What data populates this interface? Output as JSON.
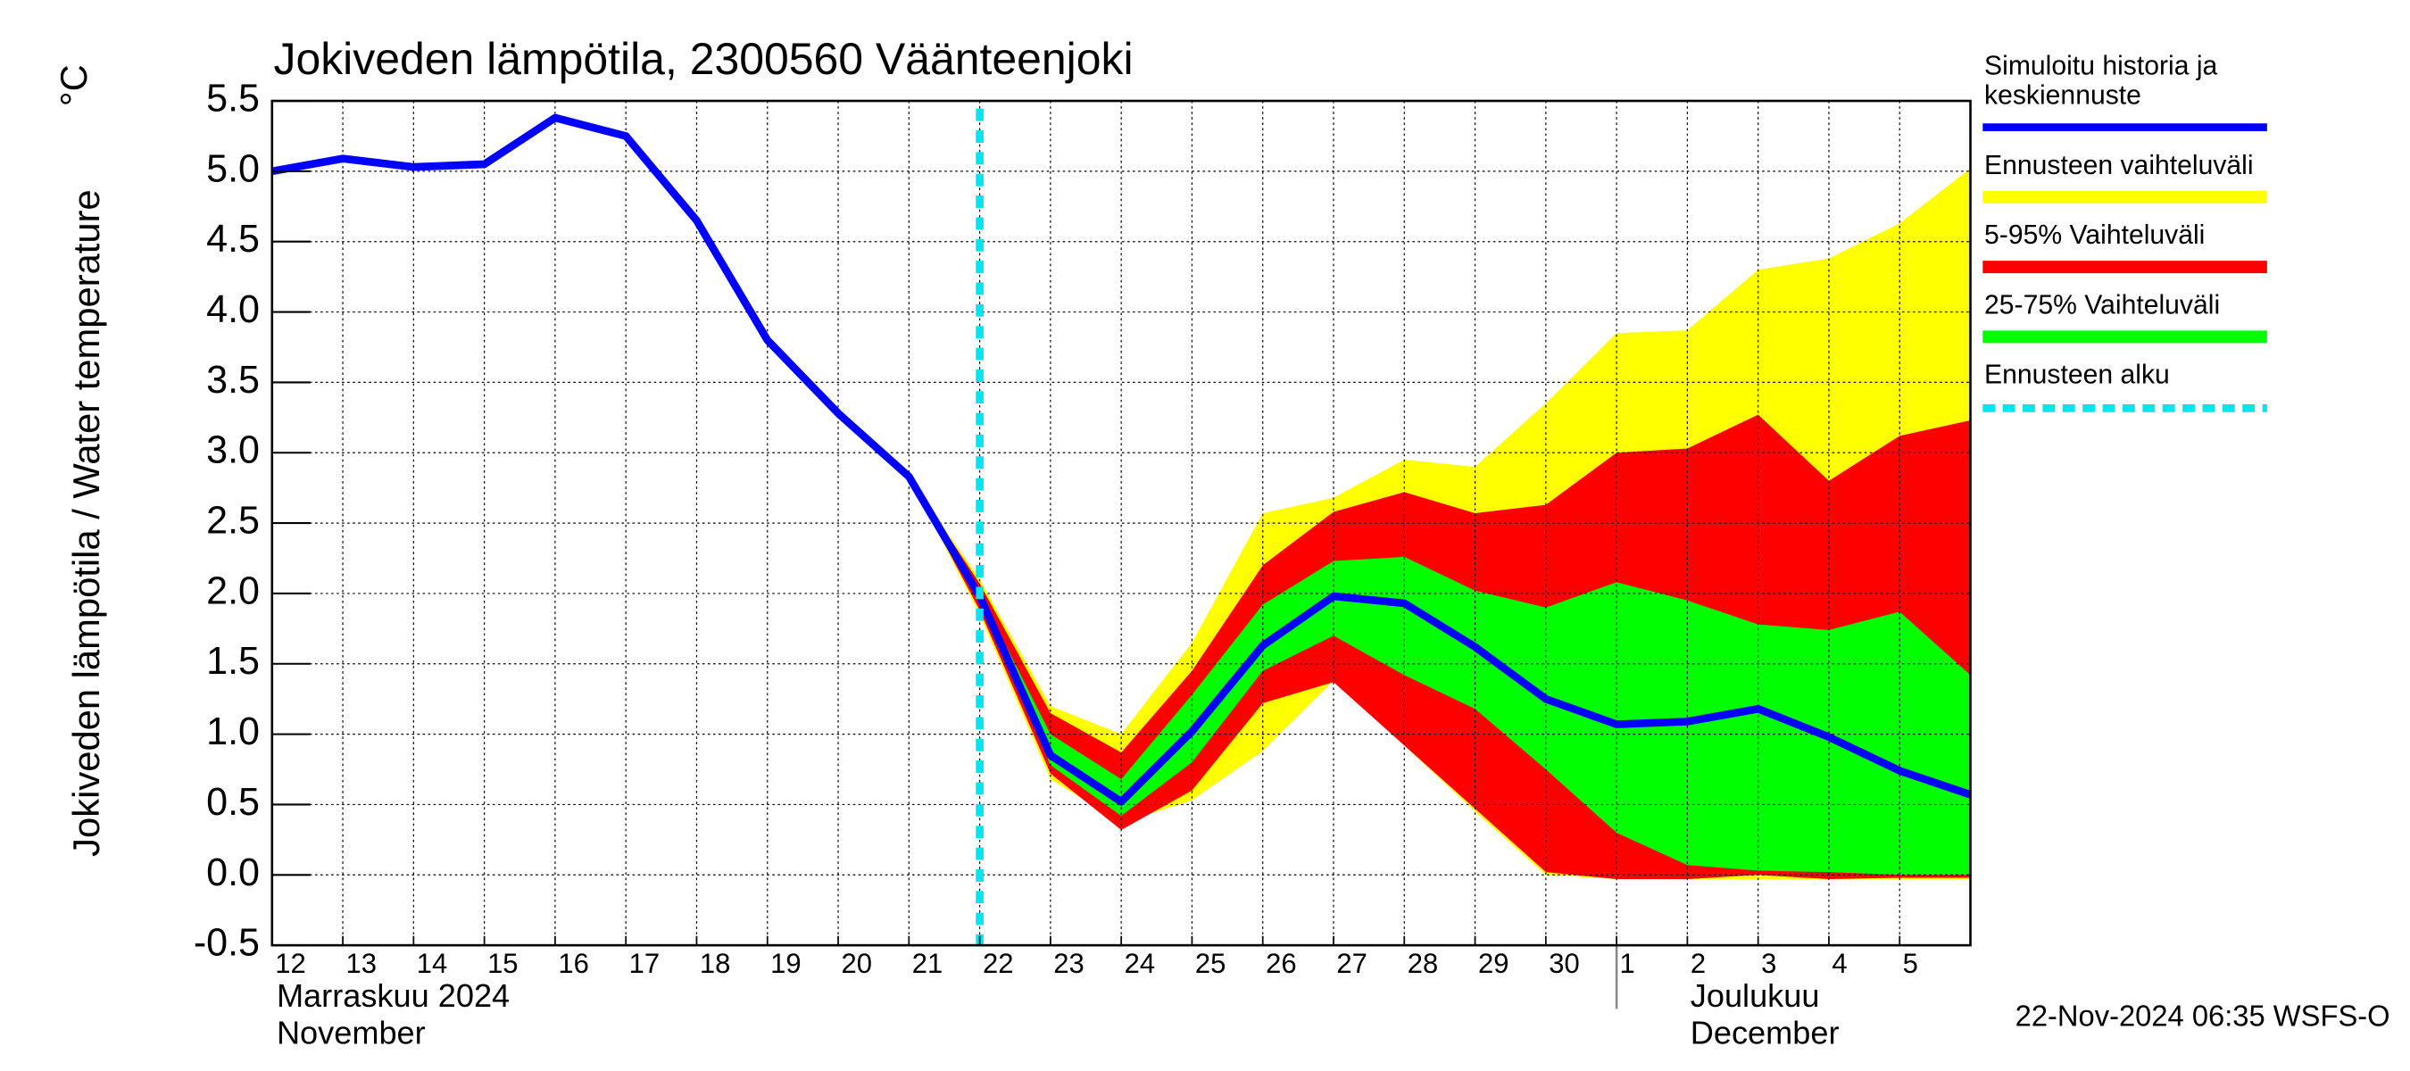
{
  "chart_data": {
    "type": "line",
    "title": "Jokiveden lämpötila, 2300560 Väänteenjoki",
    "ylabel": "Jokiveden lämpötila / Water temperature",
    "yunit": "°C",
    "month_labels": [
      {
        "x": "2024-11-12",
        "lines": [
          "Marraskuu 2024",
          "November"
        ]
      },
      {
        "x": "2024-12-01",
        "lines": [
          "Joulukuu",
          "December"
        ]
      }
    ],
    "footer": "22-Nov-2024 06:35 WSFS-O",
    "xlim": [
      "2024-11-12",
      "2024-12-06"
    ],
    "xticks": [
      {
        "value": "2024-11-12",
        "label": "12"
      },
      {
        "value": "2024-11-13",
        "label": "13"
      },
      {
        "value": "2024-11-14",
        "label": "14"
      },
      {
        "value": "2024-11-15",
        "label": "15"
      },
      {
        "value": "2024-11-16",
        "label": "16"
      },
      {
        "value": "2024-11-17",
        "label": "17"
      },
      {
        "value": "2024-11-18",
        "label": "18"
      },
      {
        "value": "2024-11-19",
        "label": "19"
      },
      {
        "value": "2024-11-20",
        "label": "20"
      },
      {
        "value": "2024-11-21",
        "label": "21"
      },
      {
        "value": "2024-11-22",
        "label": "22"
      },
      {
        "value": "2024-11-23",
        "label": "23"
      },
      {
        "value": "2024-11-24",
        "label": "24"
      },
      {
        "value": "2024-11-25",
        "label": "25"
      },
      {
        "value": "2024-11-26",
        "label": "26"
      },
      {
        "value": "2024-11-27",
        "label": "27"
      },
      {
        "value": "2024-11-28",
        "label": "28"
      },
      {
        "value": "2024-11-29",
        "label": "29"
      },
      {
        "value": "2024-11-30",
        "label": "30"
      },
      {
        "value": "2024-12-01",
        "label": "1"
      },
      {
        "value": "2024-12-02",
        "label": "2"
      },
      {
        "value": "2024-12-03",
        "label": "3"
      },
      {
        "value": "2024-12-04",
        "label": "4"
      },
      {
        "value": "2024-12-05",
        "label": "5"
      }
    ],
    "ylim": [
      -0.5,
      5.5
    ],
    "yticks": [
      -0.5,
      {
        "value": 0,
        "label": "0.0"
      },
      0.5,
      {
        "value": 1,
        "label": "1.0"
      },
      1.5,
      {
        "value": 2,
        "label": "2.0"
      },
      2.5,
      {
        "value": 3,
        "label": "3.0"
      },
      3.5,
      {
        "value": 4,
        "label": "4.0"
      },
      4.5,
      {
        "value": 5,
        "label": "5.0"
      },
      5.5
    ],
    "grid": true,
    "legend": "right",
    "series": [
      {
        "name": "Simuloitu historia ja keskiennuste",
        "color": "#0000ff",
        "x": [
          "2024-11-12",
          "2024-11-13",
          "2024-11-14",
          "2024-11-15",
          "2024-11-16",
          "2024-11-17",
          "2024-11-18",
          "2024-11-19",
          "2024-11-20",
          "2024-11-21",
          "2024-11-22",
          "2024-11-23",
          "2024-11-24",
          "2024-11-25",
          "2024-11-26",
          "2024-11-27",
          "2024-11-28",
          "2024-11-29",
          "2024-11-30",
          "2024-12-01",
          "2024-12-02",
          "2024-12-03",
          "2024-12-04",
          "2024-12-05",
          "2024-12-06"
        ],
        "values": [
          5.0,
          5.09,
          5.03,
          5.05,
          5.38,
          5.25,
          4.65,
          3.8,
          3.28,
          2.83,
          1.98,
          0.85,
          0.52,
          1.02,
          1.63,
          1.98,
          1.93,
          1.62,
          1.25,
          1.07,
          1.09,
          1.18,
          0.98,
          0.74,
          0.57
        ]
      }
    ],
    "bands": [
      {
        "name": "Ennusteen vaihteluväli",
        "color": "#ffff00",
        "x": [
          "2024-11-21",
          "2024-11-22",
          "2024-11-23",
          "2024-11-24",
          "2024-11-25",
          "2024-11-26",
          "2024-11-27",
          "2024-11-28",
          "2024-11-29",
          "2024-11-30",
          "2024-12-01",
          "2024-12-02",
          "2024-12-03",
          "2024-12-04",
          "2024-12-05",
          "2024-12-06"
        ],
        "upper": [
          2.83,
          2.1,
          1.2,
          1.0,
          1.65,
          2.57,
          2.68,
          2.95,
          2.9,
          3.35,
          3.85,
          3.87,
          4.3,
          4.38,
          4.63,
          5.02
        ],
        "lower": [
          2.83,
          1.85,
          0.68,
          0.37,
          0.53,
          0.88,
          1.38,
          0.92,
          0.45,
          0.0,
          -0.03,
          -0.03,
          -0.03,
          -0.03,
          -0.03,
          -0.03
        ]
      },
      {
        "name": "5-95% Vaihteluväli",
        "color": "#ff0000",
        "x": [
          "2024-11-21",
          "2024-11-22",
          "2024-11-23",
          "2024-11-24",
          "2024-11-25",
          "2024-11-26",
          "2024-11-27",
          "2024-11-28",
          "2024-11-29",
          "2024-11-30",
          "2024-12-01",
          "2024-12-02",
          "2024-12-03",
          "2024-12-04",
          "2024-12-05",
          "2024-12-06"
        ],
        "upper": [
          2.83,
          2.07,
          1.15,
          0.87,
          1.45,
          2.2,
          2.58,
          2.72,
          2.57,
          2.63,
          3.0,
          3.03,
          3.27,
          2.8,
          3.12,
          3.23
        ],
        "lower": [
          2.83,
          1.88,
          0.72,
          0.32,
          0.6,
          1.22,
          1.37,
          0.92,
          0.47,
          0.02,
          -0.03,
          -0.03,
          0.0,
          -0.03,
          -0.02,
          -0.02
        ]
      },
      {
        "name": "25-75% Vaihteluväli",
        "color": "#00ff00",
        "x": [
          "2024-11-21",
          "2024-11-22",
          "2024-11-23",
          "2024-11-24",
          "2024-11-25",
          "2024-11-26",
          "2024-11-27",
          "2024-11-28",
          "2024-11-29",
          "2024-11-30",
          "2024-12-01",
          "2024-12-02",
          "2024-12-03",
          "2024-12-04",
          "2024-12-05",
          "2024-12-06"
        ],
        "upper": [
          2.83,
          2.0,
          1.0,
          0.68,
          1.28,
          1.92,
          2.23,
          2.26,
          2.02,
          1.9,
          2.08,
          1.95,
          1.78,
          1.74,
          1.87,
          1.42
        ],
        "lower": [
          2.83,
          1.93,
          0.78,
          0.42,
          0.8,
          1.45,
          1.7,
          1.42,
          1.18,
          0.75,
          0.3,
          0.07,
          0.03,
          0.02,
          0.0,
          0.0
        ]
      }
    ],
    "forecast_start": {
      "name": "Ennusteen alku",
      "x": "2024-11-22",
      "color": "#00e5ee"
    }
  }
}
